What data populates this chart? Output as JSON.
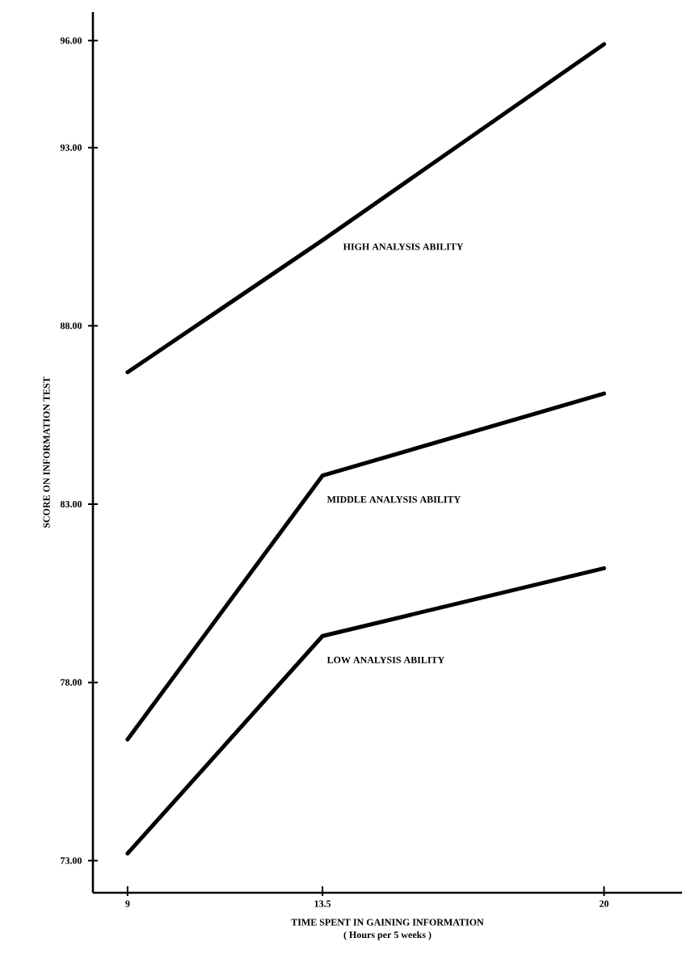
{
  "chart_data": {
    "type": "line",
    "xlabel": "TIME SPENT IN GAINING INFORMATION",
    "ylabel": "SCORE ON INFORMATION TEST",
    "annotations": [
      "( Hours per 5 weeks )"
    ],
    "x": [
      9,
      13.5,
      20
    ],
    "series": [
      {
        "name": "HIGH ANALYSIS ABILITY",
        "color": "#000000",
        "values": [
          86.7,
          90.4,
          95.9
        ]
      },
      {
        "name": "MIDDLE ANALYSIS ABILITY",
        "color": "#000000",
        "values": [
          76.4,
          83.8,
          86.1
        ]
      },
      {
        "name": "LOW ANALYSIS ABILITY",
        "color": "#000000",
        "values": [
          73.2,
          79.3,
          81.2
        ]
      }
    ],
    "xlim": [
      8.2,
      21.8
    ],
    "ylim": [
      72.1,
      96.8
    ],
    "xticks": [
      9,
      13.5,
      20
    ],
    "yticks": [
      {
        "value": 73,
        "label": "73.00"
      },
      {
        "value": 78,
        "label": "78.00"
      },
      {
        "value": 83,
        "label": "83.00"
      },
      {
        "value": 88,
        "label": "88.00"
      },
      {
        "value": 93,
        "label": "93.00"
      },
      {
        "value": 96,
        "label": "96.00"
      }
    ],
    "grid": false,
    "legend": false,
    "marker": "none",
    "line_style": "solid"
  }
}
